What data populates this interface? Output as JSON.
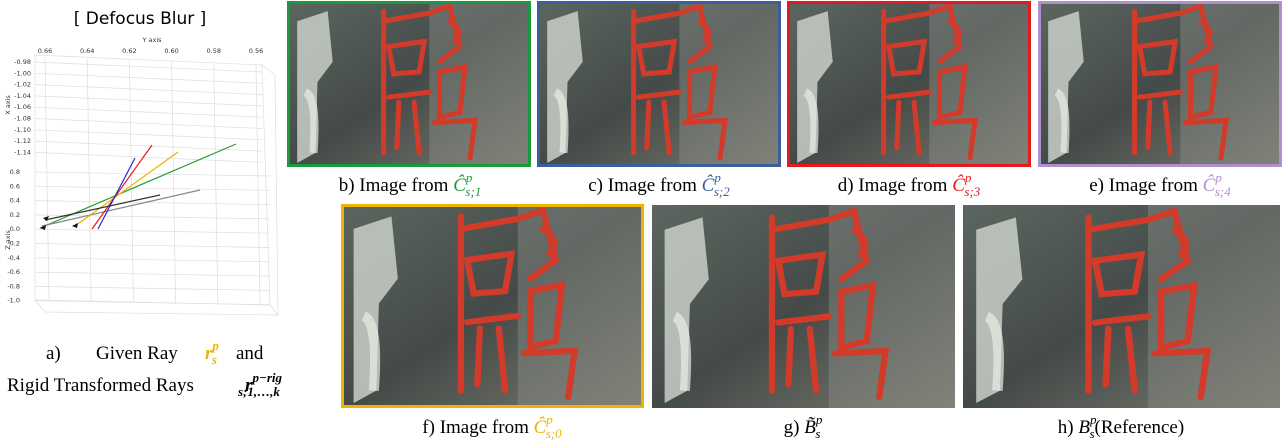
{
  "plot": {
    "title": "[ Defocus Blur ]",
    "y_axis_label": "Y axis",
    "x_axis_label": "X axis",
    "z_axis_label": "Z axis",
    "y_ticks": [
      "0.66",
      "0.64",
      "0.62",
      "0.60",
      "0.58",
      "0.56"
    ],
    "x_ticks": [
      "-0.98",
      "-1.00",
      "-1.02",
      "-1.04",
      "-1.06",
      "-1.08",
      "-1.10",
      "-1.12",
      "-1.14"
    ],
    "z_ticks": [
      "0.8",
      "0.6",
      "0.4",
      "0.2",
      "0.0",
      "-0.2",
      "-0.4",
      "-0.6",
      "-0.8",
      "-1.0"
    ]
  },
  "caption_a": {
    "label": "a)",
    "text1": "Given Ray",
    "ray": {
      "base": "r",
      "sup": "p",
      "sub": "s",
      "color": "#f0b400"
    },
    "text2": "and",
    "text3": "Rigid Transformed Rays",
    "rays": {
      "base": "r",
      "sup": "p−rig",
      "sub": "s;1,…,k"
    }
  },
  "captions": [
    {
      "prefix": "b) Image from ",
      "base": "Ĉ",
      "sup": "p",
      "sub": "s;1",
      "color": "#1a9a3a"
    },
    {
      "prefix": "c) Image from ",
      "base": "Ĉ",
      "sup": "p",
      "sub": "s;2",
      "color": "#3a5fa0"
    },
    {
      "prefix": "d) Image from ",
      "base": "Ĉ",
      "sup": "p",
      "sub": "s;3",
      "color": "#e41a1c"
    },
    {
      "prefix": "e) Image from ",
      "base": "Ĉ",
      "sup": "p",
      "sub": "s;4",
      "color": "#b08fd0"
    },
    {
      "prefix": "f) Image from ",
      "base": "Ĉ",
      "sup": "p",
      "sub": "s;0",
      "color": "#f0b400"
    },
    {
      "prefix": "g) ",
      "base": "B̃",
      "sup": "p",
      "sub": "s"
    },
    {
      "prefix": "h) ",
      "base": "B",
      "sup": "p",
      "sub": "s",
      "suffix": "(Reference)"
    }
  ]
}
